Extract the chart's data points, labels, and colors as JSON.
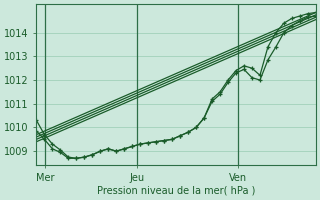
{
  "bg_color": "#cce8dc",
  "grid_color": "#99ccb3",
  "line_color": "#1a5c2a",
  "marker_color": "#1a5c2a",
  "xlabel": "Pression niveau de la mer( hPa )",
  "yticks": [
    1009,
    1010,
    1011,
    1012,
    1013,
    1014
  ],
  "ylim": [
    1008.4,
    1015.2
  ],
  "xlim": [
    0,
    100
  ],
  "xtick_positions": [
    3,
    36,
    72
  ],
  "xtick_labels": [
    "Mer",
    "Jeu",
    "Ven"
  ],
  "vline_positions": [
    3,
    36,
    72
  ],
  "straight_series": [
    [
      [
        0,
        1009.7
      ],
      [
        100,
        1014.85
      ]
    ],
    [
      [
        0,
        1009.6
      ],
      [
        100,
        1014.75
      ]
    ],
    [
      [
        0,
        1009.5
      ],
      [
        100,
        1014.65
      ]
    ],
    [
      [
        0,
        1009.4
      ],
      [
        100,
        1014.55
      ]
    ]
  ],
  "wavy_series": [
    [
      1010.3,
      1009.7,
      1009.3,
      1009.05,
      1008.75,
      1008.7,
      1008.75,
      1008.85,
      1009.0,
      1009.1,
      1009.0,
      1009.1,
      1009.2,
      1009.3,
      1009.35,
      1009.4,
      1009.45,
      1009.5,
      1009.65,
      1009.8,
      1010.0,
      1010.4,
      1011.2,
      1011.5,
      1012.0,
      1012.4,
      1012.6,
      1012.5,
      1012.2,
      1013.4,
      1014.0,
      1014.4,
      1014.6,
      1014.7,
      1014.8,
      1014.85
    ],
    [
      1009.85,
      1009.5,
      1009.1,
      1008.95,
      1008.7,
      1008.7,
      1008.75,
      1008.85,
      1009.0,
      1009.1,
      1009.0,
      1009.1,
      1009.2,
      1009.3,
      1009.35,
      1009.4,
      1009.45,
      1009.5,
      1009.65,
      1009.8,
      1010.0,
      1010.4,
      1011.1,
      1011.4,
      1011.9,
      1012.3,
      1012.45,
      1012.1,
      1012.0,
      1012.85,
      1013.4,
      1014.0,
      1014.3,
      1014.5,
      1014.65,
      1014.7
    ]
  ]
}
